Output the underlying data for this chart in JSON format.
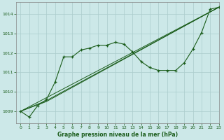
{
  "xlabel": "Graphe pression niveau de la mer (hPa)",
  "background_color": "#cce8e8",
  "grid_color": "#aacccc",
  "line_color": "#1a5c1a",
  "ylim": [
    1008.4,
    1014.6
  ],
  "xlim": [
    -0.5,
    23
  ],
  "yticks": [
    1009,
    1010,
    1011,
    1012,
    1013,
    1014
  ],
  "xticks": [
    0,
    1,
    2,
    3,
    4,
    5,
    6,
    7,
    8,
    9,
    10,
    11,
    12,
    13,
    14,
    15,
    16,
    17,
    18,
    19,
    20,
    21,
    22,
    23
  ],
  "series": [
    {
      "x": [
        0,
        1,
        2,
        3,
        4,
        5,
        6,
        7,
        8,
        9,
        10,
        11,
        12,
        13,
        14,
        15,
        16,
        17,
        18,
        19,
        20,
        21,
        22,
        23
      ],
      "y": [
        1009.0,
        1008.7,
        1009.3,
        1009.6,
        1010.5,
        1011.8,
        1011.8,
        1012.15,
        1012.25,
        1012.4,
        1012.4,
        1012.55,
        1012.45,
        1012.05,
        1011.55,
        1011.25,
        1011.1,
        1011.1,
        1011.1,
        1011.5,
        1012.2,
        1013.05,
        1014.25,
        1014.35
      ],
      "marker": "+"
    },
    {
      "x": [
        0,
        3,
        23
      ],
      "y": [
        1009.0,
        1009.55,
        1014.35
      ],
      "marker": null
    },
    {
      "x": [
        0,
        3,
        23
      ],
      "y": [
        1009.0,
        1009.5,
        1014.35
      ],
      "marker": null
    },
    {
      "x": [
        0,
        23
      ],
      "y": [
        1009.0,
        1014.35
      ],
      "marker": null
    }
  ]
}
